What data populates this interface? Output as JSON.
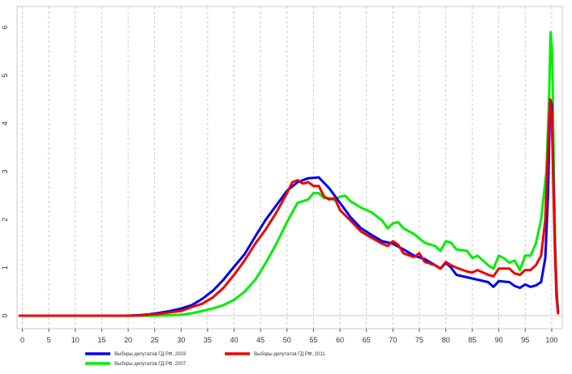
{
  "chart_data": {
    "type": "line",
    "xlim": [
      -1,
      102
    ],
    "ylim": [
      0,
      6.2
    ],
    "xticks": [
      "0",
      "5",
      "10",
      "15",
      "20",
      "25",
      "30",
      "35",
      "40",
      "45",
      "50",
      "55",
      "60",
      "65",
      "70",
      "75",
      "80",
      "85",
      "90",
      "95",
      "100"
    ],
    "yticks": [
      "0",
      "1",
      "2",
      "3",
      "4",
      "5",
      "6"
    ],
    "grid": "vertical dashed",
    "legend_placement": "bottom",
    "series": [
      {
        "name": "Выборы депутатов ГД РФ, 2003",
        "color": "#0000ee",
        "points": [
          [
            -0.5,
            0
          ],
          [
            20,
            0
          ],
          [
            22,
            0.01
          ],
          [
            24,
            0.03
          ],
          [
            26,
            0.06
          ],
          [
            28,
            0.1
          ],
          [
            30,
            0.15
          ],
          [
            32,
            0.22
          ],
          [
            34,
            0.35
          ],
          [
            36,
            0.52
          ],
          [
            38,
            0.75
          ],
          [
            40,
            1.02
          ],
          [
            42,
            1.28
          ],
          [
            44,
            1.65
          ],
          [
            46,
            2.0
          ],
          [
            48,
            2.3
          ],
          [
            50,
            2.6
          ],
          [
            52,
            2.78
          ],
          [
            54,
            2.86
          ],
          [
            56,
            2.88
          ],
          [
            58,
            2.65
          ],
          [
            60,
            2.35
          ],
          [
            62,
            2.05
          ],
          [
            64,
            1.82
          ],
          [
            66,
            1.68
          ],
          [
            68,
            1.55
          ],
          [
            70,
            1.5
          ],
          [
            72,
            1.38
          ],
          [
            74,
            1.25
          ],
          [
            76,
            1.18
          ],
          [
            78,
            1.05
          ],
          [
            79,
            0.98
          ],
          [
            80,
            1.1
          ],
          [
            81,
            1.0
          ],
          [
            82,
            0.85
          ],
          [
            84,
            0.8
          ],
          [
            86,
            0.75
          ],
          [
            88,
            0.7
          ],
          [
            89,
            0.6
          ],
          [
            90,
            0.72
          ],
          [
            92,
            0.7
          ],
          [
            93,
            0.62
          ],
          [
            94,
            0.58
          ],
          [
            95,
            0.65
          ],
          [
            96,
            0.6
          ],
          [
            97,
            0.63
          ],
          [
            98,
            0.7
          ],
          [
            98.8,
            1.2
          ],
          [
            99.3,
            2.5
          ],
          [
            99.7,
            4.5
          ],
          [
            100,
            4.4
          ],
          [
            100.3,
            3.0
          ],
          [
            100.6,
            1.5
          ],
          [
            100.9,
            0.5
          ],
          [
            101.2,
            0.08
          ]
        ]
      },
      {
        "name": "Выборы депутатов ГД РФ, 2007",
        "color": "#00ee00",
        "points": [
          [
            -0.5,
            0
          ],
          [
            25,
            0
          ],
          [
            28,
            0.01
          ],
          [
            30,
            0.02
          ],
          [
            32,
            0.05
          ],
          [
            34,
            0.1
          ],
          [
            36,
            0.15
          ],
          [
            38,
            0.22
          ],
          [
            40,
            0.33
          ],
          [
            42,
            0.5
          ],
          [
            44,
            0.75
          ],
          [
            46,
            1.1
          ],
          [
            48,
            1.5
          ],
          [
            50,
            1.95
          ],
          [
            52,
            2.35
          ],
          [
            54,
            2.42
          ],
          [
            55,
            2.55
          ],
          [
            56,
            2.55
          ],
          [
            57,
            2.45
          ],
          [
            58,
            2.45
          ],
          [
            59,
            2.4
          ],
          [
            60,
            2.48
          ],
          [
            61,
            2.5
          ],
          [
            62,
            2.38
          ],
          [
            64,
            2.25
          ],
          [
            66,
            2.15
          ],
          [
            68,
            1.98
          ],
          [
            69,
            1.82
          ],
          [
            70,
            1.92
          ],
          [
            71,
            1.95
          ],
          [
            72,
            1.82
          ],
          [
            74,
            1.7
          ],
          [
            76,
            1.52
          ],
          [
            78,
            1.45
          ],
          [
            79,
            1.35
          ],
          [
            80,
            1.55
          ],
          [
            81,
            1.52
          ],
          [
            82,
            1.38
          ],
          [
            84,
            1.35
          ],
          [
            85,
            1.2
          ],
          [
            86,
            1.25
          ],
          [
            88,
            1.05
          ],
          [
            89,
            0.98
          ],
          [
            90,
            1.25
          ],
          [
            91,
            1.2
          ],
          [
            92,
            1.1
          ],
          [
            93,
            1.15
          ],
          [
            94,
            0.95
          ],
          [
            95,
            1.25
          ],
          [
            96,
            1.25
          ],
          [
            97,
            1.5
          ],
          [
            98,
            2.0
          ],
          [
            99,
            3.0
          ],
          [
            99.5,
            4.5
          ],
          [
            99.8,
            5.9
          ],
          [
            100.1,
            5.5
          ],
          [
            100.4,
            3.0
          ],
          [
            100.7,
            1.3
          ],
          [
            101,
            0.4
          ],
          [
            101.2,
            0.08
          ]
        ]
      },
      {
        "name": "Выборы депутатов ГД РФ, 2011",
        "color": "#ee0000",
        "points": [
          [
            -0.5,
            0
          ],
          [
            20,
            0
          ],
          [
            22,
            0.005
          ],
          [
            24,
            0.02
          ],
          [
            26,
            0.04
          ],
          [
            28,
            0.07
          ],
          [
            30,
            0.1
          ],
          [
            32,
            0.18
          ],
          [
            34,
            0.25
          ],
          [
            36,
            0.38
          ],
          [
            38,
            0.58
          ],
          [
            40,
            0.85
          ],
          [
            42,
            1.15
          ],
          [
            44,
            1.5
          ],
          [
            46,
            1.8
          ],
          [
            48,
            2.15
          ],
          [
            50,
            2.55
          ],
          [
            51,
            2.78
          ],
          [
            52,
            2.82
          ],
          [
            53,
            2.75
          ],
          [
            54,
            2.78
          ],
          [
            55,
            2.7
          ],
          [
            56,
            2.7
          ],
          [
            57,
            2.48
          ],
          [
            58,
            2.42
          ],
          [
            59,
            2.45
          ],
          [
            60,
            2.2
          ],
          [
            62,
            1.98
          ],
          [
            64,
            1.75
          ],
          [
            66,
            1.62
          ],
          [
            68,
            1.5
          ],
          [
            69,
            1.45
          ],
          [
            70,
            1.55
          ],
          [
            71,
            1.48
          ],
          [
            72,
            1.3
          ],
          [
            74,
            1.22
          ],
          [
            75,
            1.3
          ],
          [
            76,
            1.12
          ],
          [
            78,
            1.05
          ],
          [
            79,
            0.98
          ],
          [
            80,
            1.12
          ],
          [
            81,
            1.05
          ],
          [
            82,
            1.0
          ],
          [
            84,
            0.92
          ],
          [
            85,
            0.9
          ],
          [
            86,
            0.95
          ],
          [
            88,
            0.85
          ],
          [
            89,
            0.82
          ],
          [
            90,
            0.98
          ],
          [
            92,
            0.98
          ],
          [
            93,
            0.88
          ],
          [
            94,
            0.85
          ],
          [
            95,
            0.95
          ],
          [
            96,
            0.95
          ],
          [
            97,
            1.05
          ],
          [
            98,
            1.25
          ],
          [
            98.8,
            2.0
          ],
          [
            99.3,
            3.5
          ],
          [
            99.7,
            4.5
          ],
          [
            100,
            4.2
          ],
          [
            100.3,
            2.8
          ],
          [
            100.6,
            1.4
          ],
          [
            100.9,
            0.4
          ],
          [
            101.2,
            0.05
          ]
        ]
      }
    ]
  }
}
